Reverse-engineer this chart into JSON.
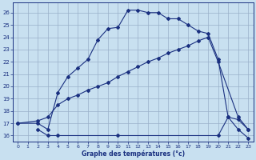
{
  "title": "Graphe des températures (°c)",
  "bg_color": "#c8e0f0",
  "line_color": "#1a3080",
  "grid_color": "#9ab0c8",
  "xlim": [
    -0.5,
    23.5
  ],
  "ylim": [
    15.5,
    26.8
  ],
  "xticks": [
    0,
    1,
    2,
    3,
    4,
    5,
    6,
    7,
    8,
    9,
    10,
    11,
    12,
    13,
    14,
    15,
    16,
    17,
    18,
    19,
    20,
    21,
    22,
    23
  ],
  "yticks": [
    16,
    17,
    18,
    19,
    20,
    21,
    22,
    23,
    24,
    25,
    26
  ],
  "curve1_x": [
    2,
    3,
    4,
    10,
    20,
    21,
    22,
    23
  ],
  "curve1_y": [
    16.5,
    16.0,
    16.0,
    16.0,
    16.0,
    17.5,
    16.5,
    15.8
  ],
  "curve2_x": [
    0,
    2,
    3,
    4,
    5,
    6,
    7,
    8,
    9,
    10,
    11,
    12,
    13,
    14,
    15,
    16,
    17,
    18,
    19,
    20,
    22,
    23
  ],
  "curve2_y": [
    17.0,
    17.2,
    17.5,
    18.5,
    19.0,
    19.3,
    19.7,
    20.0,
    20.3,
    20.8,
    21.2,
    21.6,
    22.0,
    22.3,
    22.7,
    23.0,
    23.3,
    23.7,
    24.0,
    22.0,
    17.5,
    16.5
  ],
  "curve3_x": [
    0,
    2,
    3,
    4,
    5,
    6,
    7,
    8,
    9,
    10,
    11,
    12,
    13,
    14,
    15,
    16,
    17,
    18,
    19,
    20,
    21,
    22,
    23
  ],
  "curve3_y": [
    17.0,
    17.0,
    16.5,
    19.5,
    20.8,
    21.5,
    22.2,
    23.8,
    24.7,
    24.8,
    26.2,
    26.2,
    26.0,
    26.0,
    25.5,
    25.5,
    25.0,
    24.5,
    24.3,
    22.2,
    17.5,
    17.3,
    16.5
  ]
}
